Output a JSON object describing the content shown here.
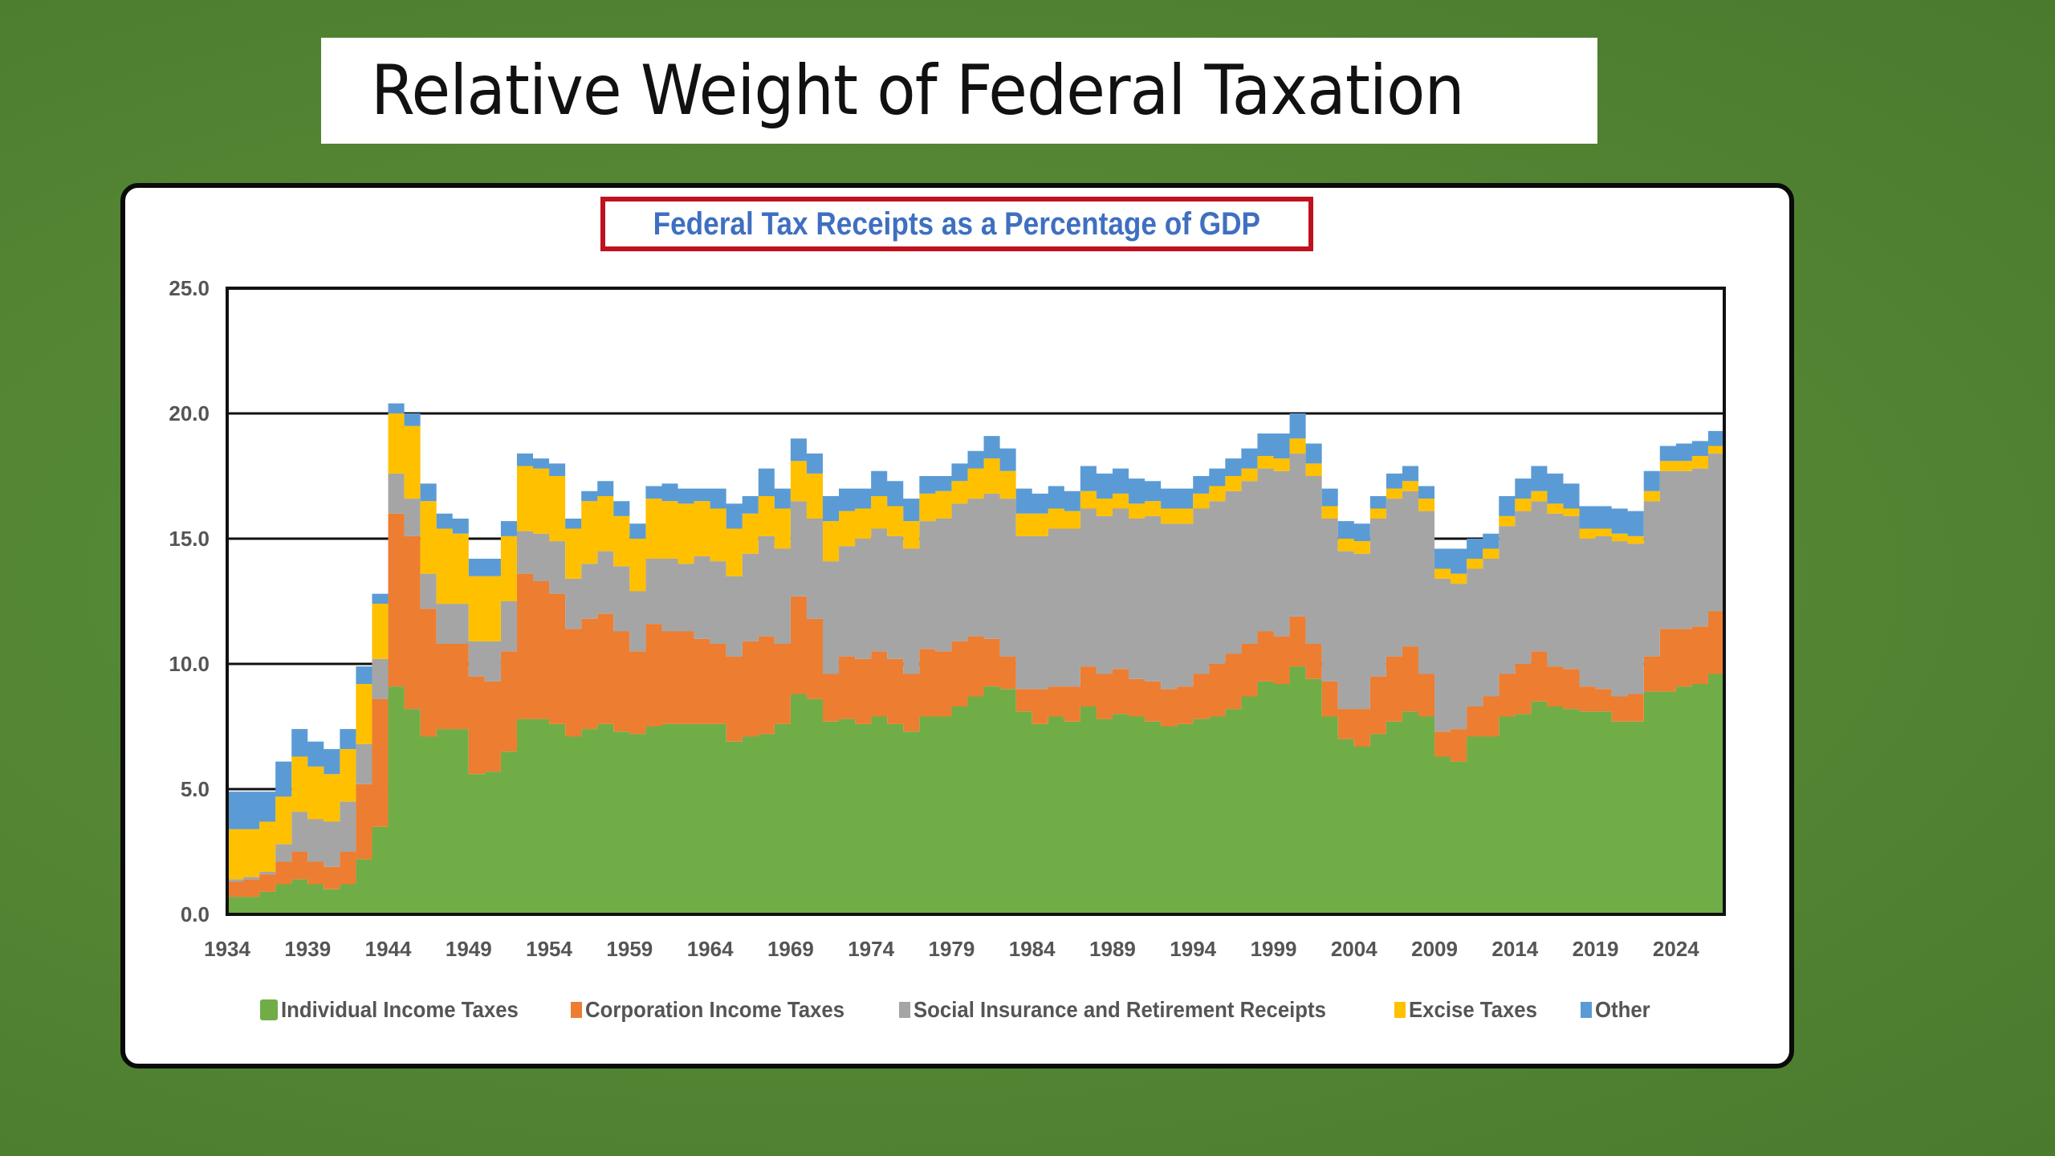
{
  "slide": {
    "title": "Relative Weight of Federal Taxation",
    "background_color": "#538533"
  },
  "chart_data": {
    "type": "area",
    "stacked": true,
    "step": true,
    "title": "Federal Tax Receipts as a Percentage of GDP",
    "xlabel": "",
    "ylabel": "",
    "ylim": [
      0,
      25
    ],
    "yticks": [
      "0.0",
      "5.0",
      "10.0",
      "15.0",
      "20.0",
      "25.0"
    ],
    "ytick_values": [
      0,
      5,
      10,
      15,
      20,
      25
    ],
    "xticks": [
      "1934",
      "1939",
      "1944",
      "1949",
      "1954",
      "1959",
      "1964",
      "1969",
      "1974",
      "1979",
      "1984",
      "1989",
      "1994",
      "1999",
      "2004",
      "2009",
      "2014",
      "2019",
      "2024"
    ],
    "grid": true,
    "legend_position": "bottom",
    "x_start": 1934,
    "x_end": 2026,
    "series": [
      {
        "name": "Individual Income Taxes",
        "color": "#70ad47",
        "values": [
          0.7,
          0.7,
          0.9,
          1.2,
          1.4,
          1.2,
          1.0,
          1.2,
          2.2,
          3.5,
          9.1,
          8.2,
          7.1,
          7.4,
          7.4,
          5.6,
          5.7,
          6.5,
          7.8,
          7.8,
          7.6,
          7.1,
          7.4,
          7.6,
          7.3,
          7.2,
          7.5,
          7.6,
          7.6,
          7.6,
          7.6,
          6.9,
          7.1,
          7.2,
          7.6,
          8.8,
          8.6,
          7.7,
          7.8,
          7.6,
          7.9,
          7.6,
          7.3,
          7.9,
          7.9,
          8.3,
          8.7,
          9.1,
          9.0,
          8.1,
          7.6,
          7.9,
          7.7,
          8.3,
          7.8,
          8.0,
          7.9,
          7.7,
          7.5,
          7.6,
          7.8,
          7.9,
          8.2,
          8.7,
          9.3,
          9.2,
          9.9,
          9.4,
          7.9,
          7.0,
          6.7,
          7.2,
          7.7,
          8.1,
          7.9,
          6.3,
          6.1,
          7.1,
          7.1,
          7.9,
          8.0,
          8.5,
          8.3,
          8.2,
          8.1,
          8.1,
          7.7,
          7.7,
          8.9,
          8.9,
          9.1,
          9.2,
          9.6
        ]
      },
      {
        "name": "Corporation Income Taxes",
        "color": "#ed7d31",
        "values": [
          0.6,
          0.7,
          0.7,
          0.9,
          1.1,
          0.9,
          0.9,
          1.3,
          3.0,
          5.1,
          6.9,
          6.9,
          5.1,
          3.4,
          3.4,
          3.9,
          3.6,
          4.0,
          5.8,
          5.5,
          5.2,
          4.3,
          4.4,
          4.4,
          4.0,
          3.3,
          4.1,
          3.7,
          3.7,
          3.4,
          3.2,
          3.4,
          3.8,
          3.9,
          3.2,
          3.9,
          3.2,
          1.9,
          2.5,
          2.6,
          2.6,
          2.6,
          2.3,
          2.7,
          2.6,
          2.6,
          2.4,
          1.9,
          1.3,
          0.9,
          1.4,
          1.2,
          1.4,
          1.6,
          1.8,
          1.8,
          1.5,
          1.6,
          1.5,
          1.5,
          1.8,
          2.1,
          2.2,
          2.1,
          2.0,
          1.9,
          2.0,
          1.4,
          1.4,
          1.2,
          1.5,
          2.3,
          2.6,
          2.6,
          1.7,
          1.0,
          1.3,
          1.2,
          1.6,
          1.7,
          2.0,
          2.0,
          1.6,
          1.6,
          1.0,
          0.9,
          1.0,
          1.1,
          1.4,
          2.5,
          2.3,
          2.3,
          2.5
        ]
      },
      {
        "name": "Social Insurance and Retirement Receipts",
        "color": "#a5a5a5",
        "values": [
          0.1,
          0.1,
          0.1,
          0.7,
          1.6,
          1.7,
          1.8,
          2.0,
          1.6,
          1.6,
          1.6,
          1.5,
          1.4,
          1.6,
          1.6,
          1.4,
          1.6,
          2.0,
          1.7,
          1.9,
          2.1,
          2.0,
          2.2,
          2.5,
          2.6,
          2.4,
          2.6,
          2.9,
          2.7,
          3.3,
          3.3,
          3.2,
          3.5,
          4.0,
          3.8,
          3.8,
          4.0,
          4.5,
          4.4,
          4.8,
          4.9,
          4.9,
          5.0,
          5.1,
          5.3,
          5.5,
          5.5,
          5.8,
          6.3,
          6.1,
          6.1,
          6.3,
          6.3,
          6.3,
          6.3,
          6.4,
          6.4,
          6.6,
          6.6,
          6.5,
          6.6,
          6.5,
          6.5,
          6.5,
          6.5,
          6.6,
          6.5,
          6.7,
          6.5,
          6.3,
          6.2,
          6.3,
          6.3,
          6.2,
          6.5,
          6.1,
          5.8,
          5.5,
          5.5,
          5.9,
          6.1,
          6.0,
          6.1,
          6.1,
          5.9,
          6.1,
          6.2,
          6.0,
          6.2,
          6.3,
          6.3,
          6.3,
          6.3
        ]
      },
      {
        "name": "Excise Taxes",
        "color": "#ffc000",
        "values": [
          2.0,
          1.9,
          2.0,
          1.9,
          2.2,
          2.1,
          1.9,
          2.1,
          2.4,
          2.2,
          2.4,
          2.9,
          2.9,
          3.0,
          2.8,
          2.6,
          2.6,
          2.6,
          2.6,
          2.6,
          2.6,
          2.0,
          2.5,
          2.2,
          2.0,
          2.1,
          2.4,
          2.3,
          2.4,
          2.2,
          2.1,
          1.9,
          1.6,
          1.6,
          1.6,
          1.6,
          1.8,
          1.6,
          1.4,
          1.2,
          1.3,
          1.2,
          1.1,
          1.1,
          1.1,
          0.9,
          1.2,
          1.4,
          1.1,
          0.9,
          0.9,
          0.8,
          0.7,
          0.7,
          0.7,
          0.6,
          0.6,
          0.6,
          0.6,
          0.6,
          0.6,
          0.6,
          0.6,
          0.5,
          0.5,
          0.5,
          0.6,
          0.5,
          0.5,
          0.5,
          0.5,
          0.4,
          0.4,
          0.4,
          0.5,
          0.4,
          0.4,
          0.4,
          0.4,
          0.4,
          0.5,
          0.4,
          0.4,
          0.3,
          0.4,
          0.3,
          0.3,
          0.3,
          0.4,
          0.4,
          0.4,
          0.5,
          0.3
        ]
      },
      {
        "name": "Other",
        "color": "#5b9bd5",
        "values": [
          1.5,
          1.5,
          1.2,
          1.4,
          1.1,
          1.0,
          1.0,
          0.8,
          0.7,
          0.4,
          0.4,
          0.5,
          0.7,
          0.6,
          0.6,
          0.7,
          0.7,
          0.6,
          0.5,
          0.4,
          0.5,
          0.4,
          0.4,
          0.6,
          0.6,
          0.6,
          0.5,
          0.7,
          0.6,
          0.5,
          0.8,
          1.0,
          0.7,
          1.1,
          0.8,
          0.9,
          0.8,
          1.0,
          0.9,
          0.8,
          1.0,
          1.0,
          0.9,
          0.7,
          0.6,
          0.7,
          0.7,
          0.9,
          0.9,
          1.0,
          0.8,
          0.9,
          0.8,
          1.0,
          1.0,
          1.0,
          1.0,
          0.8,
          0.8,
          0.8,
          0.7,
          0.7,
          0.7,
          0.8,
          0.9,
          1.0,
          1.0,
          0.8,
          0.7,
          0.7,
          0.7,
          0.5,
          0.6,
          0.6,
          0.5,
          0.8,
          1.0,
          0.8,
          0.6,
          0.8,
          0.8,
          1.0,
          1.2,
          1.0,
          0.9,
          0.9,
          1.0,
          1.0,
          0.8,
          0.6,
          0.7,
          0.6,
          0.6
        ]
      }
    ]
  },
  "legend": [
    {
      "label": "Individual Income Taxes",
      "color": "#70ad47"
    },
    {
      "label": "Corporation Income Taxes",
      "color": "#ed7d31"
    },
    {
      "label": "Social Insurance and Retirement Receipts",
      "color": "#a5a5a5"
    },
    {
      "label": "Excise Taxes",
      "color": "#ffc000"
    },
    {
      "label": "Other",
      "color": "#5b9bd5"
    }
  ]
}
